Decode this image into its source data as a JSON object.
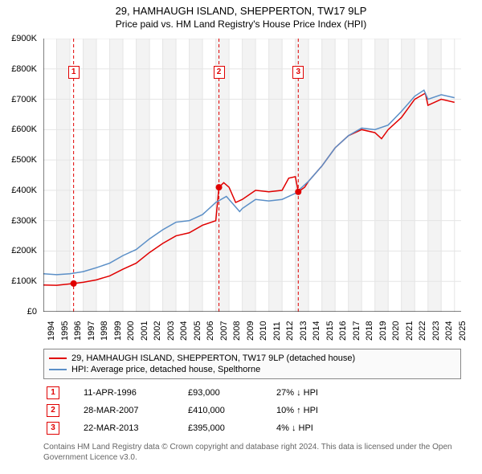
{
  "title": {
    "line1": "29, HAMHAUGH ISLAND, SHEPPERTON, TW17 9LP",
    "line2": "Price paid vs. HM Land Registry's House Price Index (HPI)"
  },
  "chart": {
    "type": "line",
    "background_color": "#ffffff",
    "grid_color": "#e5e5e5",
    "grid_band_color": "#f3f3f3",
    "axis_color": "#000000",
    "label_fontsize": 11,
    "xlim": [
      1994,
      2025.5
    ],
    "ylim": [
      0,
      900000
    ],
    "y_ticks": [
      0,
      100000,
      200000,
      300000,
      400000,
      500000,
      600000,
      700000,
      800000,
      900000
    ],
    "y_tick_labels": [
      "£0",
      "£100K",
      "£200K",
      "£300K",
      "£400K",
      "£500K",
      "£600K",
      "£700K",
      "£800K",
      "£900K"
    ],
    "x_ticks": [
      1994,
      1995,
      1996,
      1997,
      1998,
      1999,
      2000,
      2001,
      2002,
      2003,
      2004,
      2005,
      2006,
      2007,
      2008,
      2009,
      2010,
      2011,
      2012,
      2013,
      2014,
      2015,
      2016,
      2017,
      2018,
      2019,
      2020,
      2021,
      2022,
      2023,
      2024,
      2025
    ],
    "series": [
      {
        "name": "property",
        "label": "29, HAMHAUGH ISLAND, SHEPPERTON, TW17 9LP (detached house)",
        "color": "#e00000",
        "line_width": 1.5,
        "data": [
          [
            1994,
            88000
          ],
          [
            1995,
            87000
          ],
          [
            1996.28,
            93000
          ],
          [
            1997,
            97000
          ],
          [
            1998,
            105000
          ],
          [
            1999,
            118000
          ],
          [
            2000,
            140000
          ],
          [
            2001,
            160000
          ],
          [
            2002,
            195000
          ],
          [
            2003,
            225000
          ],
          [
            2004,
            250000
          ],
          [
            2005,
            260000
          ],
          [
            2006,
            285000
          ],
          [
            2007.0,
            300000
          ],
          [
            2007.24,
            410000
          ],
          [
            2007.6,
            425000
          ],
          [
            2008,
            410000
          ],
          [
            2008.5,
            360000
          ],
          [
            2009,
            370000
          ],
          [
            2010,
            400000
          ],
          [
            2011,
            395000
          ],
          [
            2012,
            400000
          ],
          [
            2012.5,
            440000
          ],
          [
            2013,
            445000
          ],
          [
            2013.22,
            395000
          ],
          [
            2013.7,
            410000
          ],
          [
            2014,
            430000
          ],
          [
            2015,
            480000
          ],
          [
            2016,
            540000
          ],
          [
            2017,
            580000
          ],
          [
            2018,
            600000
          ],
          [
            2019,
            590000
          ],
          [
            2019.5,
            570000
          ],
          [
            2020,
            600000
          ],
          [
            2021,
            640000
          ],
          [
            2022,
            700000
          ],
          [
            2022.8,
            720000
          ],
          [
            2023,
            680000
          ],
          [
            2024,
            700000
          ],
          [
            2025,
            690000
          ]
        ]
      },
      {
        "name": "hpi",
        "label": "HPI: Average price, detached house, Spelthorne",
        "color": "#5b8fc7",
        "line_width": 1.5,
        "data": [
          [
            1994,
            125000
          ],
          [
            1995,
            122000
          ],
          [
            1996,
            125000
          ],
          [
            1997,
            132000
          ],
          [
            1998,
            145000
          ],
          [
            1999,
            160000
          ],
          [
            2000,
            185000
          ],
          [
            2001,
            205000
          ],
          [
            2002,
            240000
          ],
          [
            2003,
            270000
          ],
          [
            2004,
            295000
          ],
          [
            2005,
            300000
          ],
          [
            2006,
            320000
          ],
          [
            2007,
            360000
          ],
          [
            2007.8,
            380000
          ],
          [
            2008,
            370000
          ],
          [
            2008.8,
            330000
          ],
          [
            2009,
            340000
          ],
          [
            2010,
            370000
          ],
          [
            2011,
            365000
          ],
          [
            2012,
            370000
          ],
          [
            2013,
            390000
          ],
          [
            2014,
            430000
          ],
          [
            2015,
            480000
          ],
          [
            2016,
            540000
          ],
          [
            2017,
            580000
          ],
          [
            2018,
            605000
          ],
          [
            2019,
            600000
          ],
          [
            2020,
            615000
          ],
          [
            2021,
            660000
          ],
          [
            2022,
            710000
          ],
          [
            2022.7,
            730000
          ],
          [
            2023,
            700000
          ],
          [
            2024,
            715000
          ],
          [
            2025,
            705000
          ]
        ]
      }
    ],
    "markers": [
      {
        "n": "1",
        "x": 1996.28,
        "y": 93000,
        "box_y": 810000
      },
      {
        "n": "2",
        "x": 2007.24,
        "y": 410000,
        "box_y": 810000
      },
      {
        "n": "3",
        "x": 2013.22,
        "y": 395000,
        "box_y": 810000
      }
    ],
    "marker_color": "#e00000",
    "marker_line_dash": "4,3"
  },
  "legend": {
    "rows": [
      {
        "color": "#e00000",
        "label": "29, HAMHAUGH ISLAND, SHEPPERTON, TW17 9LP (detached house)"
      },
      {
        "color": "#5b8fc7",
        "label": "HPI: Average price, detached house, Spelthorne"
      }
    ]
  },
  "transactions": [
    {
      "n": "1",
      "date": "11-APR-1996",
      "price": "£93,000",
      "delta": "27% ↓ HPI"
    },
    {
      "n": "2",
      "date": "28-MAR-2007",
      "price": "£410,000",
      "delta": "10% ↑ HPI"
    },
    {
      "n": "3",
      "date": "22-MAR-2013",
      "price": "£395,000",
      "delta": "4% ↓ HPI"
    }
  ],
  "footnote": "Contains HM Land Registry data © Crown copyright and database right 2024. This data is licensed under the Open Government Licence v3.0."
}
